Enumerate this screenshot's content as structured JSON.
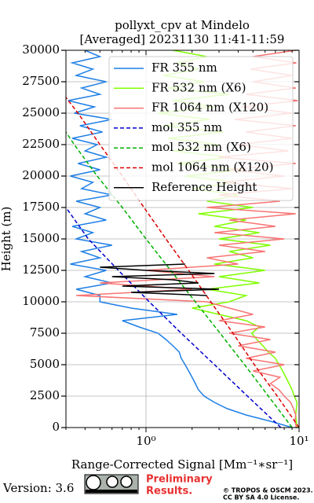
{
  "chart_data": {
    "type": "profile",
    "title": "pollyxt_cpv at Mindelo",
    "subtitle": "[Averaged] 20231130 11:41-11:59",
    "xlabel": "Range-Corrected Signal [Mm⁻¹∗sr⁻¹]",
    "ylabel": "Height (m)",
    "xscale": "log",
    "xlim": [
      0.3,
      10
    ],
    "xticks": [
      {
        "value": 1,
        "label": "10⁰"
      },
      {
        "value": 10,
        "label": "10¹"
      }
    ],
    "xminorticks": [
      0.3,
      0.4,
      0.5,
      0.6,
      0.7,
      0.8,
      0.9,
      2,
      3,
      4,
      5,
      6,
      7,
      8,
      9
    ],
    "ylim": [
      0,
      30000
    ],
    "yticks": [
      0,
      2500,
      5000,
      7500,
      10000,
      12500,
      15000,
      17500,
      20000,
      22500,
      25000,
      27500,
      30000
    ],
    "grid": true,
    "legend_loc": "upper right",
    "y": [
      0,
      500,
      1000,
      1500,
      2000,
      2500,
      3000,
      3500,
      4000,
      4500,
      5000,
      5500,
      6000,
      6500,
      7000,
      7500,
      8000,
      8500,
      9000,
      9500,
      10000,
      10500,
      11000,
      11500,
      12000,
      12500,
      13000,
      13500,
      14000,
      14500,
      15000,
      15500,
      16000,
      16500,
      17000,
      17500,
      18000,
      18500,
      19000,
      19500,
      20000,
      20500,
      21000,
      21500,
      22000,
      22500,
      23000,
      23500,
      24000,
      24500,
      25000,
      25500,
      26000,
      26500,
      27000,
      27500,
      28000,
      28500,
      29000,
      29500,
      30000
    ],
    "series": [
      {
        "name": "FR 355 nm",
        "color": "#1e7fe6",
        "linestyle": "solid",
        "values": [
          9.0,
          6.5,
          4.5,
          3.4,
          2.8,
          2.4,
          2.2,
          2.1,
          2.0,
          1.9,
          1.8,
          1.7,
          1.65,
          1.5,
          1.35,
          1.2,
          0.9,
          0.7,
          1.6,
          0.8,
          0.5,
          0.5,
          0.35,
          0.6,
          0.4,
          0.55,
          0.32,
          0.5,
          0.38,
          0.6,
          0.35,
          0.45,
          0.33,
          0.55,
          0.4,
          0.5,
          0.35,
          0.6,
          0.38,
          0.45,
          0.32,
          0.5,
          0.36,
          0.55,
          0.4,
          0.48,
          0.33,
          0.52,
          0.37,
          0.6,
          0.34,
          0.46,
          0.31,
          0.5,
          0.38,
          0.55,
          0.35,
          0.45,
          0.33,
          0.5,
          0.4
        ]
      },
      {
        "name": "FR 532 nm (X6)",
        "color": "#80ff00",
        "linestyle": "solid",
        "values": [
          9.8,
          9.6,
          9.5,
          9.6,
          9.7,
          9.3,
          9,
          8.6,
          8.2,
          7.8,
          7.4,
          7,
          6.3,
          5.8,
          5.3,
          4.9,
          5.5,
          4.5,
          3.0,
          2.0,
          3.5,
          4.5,
          2.5,
          5.5,
          3.0,
          6,
          2.8,
          5,
          3.5,
          6.5,
          3,
          5.5,
          2.8,
          4.5,
          2.2,
          5,
          2.5,
          4,
          2,
          3.8,
          1.8,
          4.2,
          1.6,
          3.5,
          1.5,
          3,
          1.4,
          3.2,
          1.3,
          2.6,
          1.2,
          2.8,
          1.5,
          3.5,
          1.4,
          2.4,
          1.3,
          2.2,
          1.6,
          2.5,
          1.5
        ]
      },
      {
        "name": "FR 1064 nm (X120)",
        "color": "#f87474",
        "linestyle": "solid",
        "values": [
          9.6,
          9.4,
          9.5,
          9.2,
          8.8,
          8.0,
          7.4,
          6.5,
          7.5,
          5.0,
          8.0,
          4.5,
          7.0,
          4.0,
          6.5,
          3.5,
          6.0,
          3.0,
          5.0,
          3.5,
          2.5,
          0.35,
          2.0,
          0.5,
          2.8,
          1.0,
          4.0,
          2.5,
          6.0,
          3.0,
          8.0,
          2.8,
          7.0,
          3.5,
          9.5,
          2.5,
          7.5,
          3.0,
          9.0,
          3.2,
          8.0,
          3.5,
          9.5,
          3.0,
          8.5,
          4.0,
          9.0,
          4.5,
          9.5,
          3.8,
          9.0,
          4.2,
          9.8,
          4.5,
          9.5,
          5.0,
          9.0,
          4.8,
          9.6,
          5.0,
          9.5
        ]
      },
      {
        "name": "mol 355 nm",
        "color": "#0000cc",
        "linestyle": "dashed",
        "y": [
          0,
          2500,
          5000,
          7500,
          10000,
          12500,
          15000,
          17500
        ],
        "values": [
          7.6,
          4.6,
          2.8,
          1.7,
          1.05,
          0.66,
          0.42,
          0.3
        ]
      },
      {
        "name": "mol 532 nm (X6)",
        "color": "#00b000",
        "linestyle": "dashed",
        "y": [
          0,
          2500,
          5000,
          7500,
          10000,
          12500,
          15000,
          17500,
          20000,
          22500,
          23500
        ],
        "values": [
          9.0,
          6.3,
          4.4,
          3.05,
          2.1,
          1.45,
          1.0,
          0.7,
          0.48,
          0.34,
          0.3
        ]
      },
      {
        "name": "mol 1064 nm (X120)",
        "color": "#dd0000",
        "linestyle": "dashed",
        "y": [
          0,
          2500,
          5000,
          7500,
          10000,
          12500,
          15000,
          17500,
          20000,
          22500,
          25000,
          26250
        ],
        "values": [
          10,
          7.2,
          5.1,
          3.7,
          2.65,
          1.9,
          1.35,
          0.97,
          0.7,
          0.5,
          0.36,
          0.3
        ]
      },
      {
        "name": "Reference Height",
        "color": "#000000",
        "linestyle": "solid",
        "y": [
          10500,
          10750,
          11000,
          11250,
          11500,
          11750,
          12000,
          12250,
          12500,
          12750,
          13000
        ],
        "values": [
          2.5,
          0.8,
          3.0,
          0.7,
          2.2,
          1.5,
          0.6,
          2.8,
          1.0,
          0.5,
          1.8
        ]
      }
    ]
  },
  "footer": {
    "version": "Version: 3.6",
    "notice": [
      "Preliminary",
      "Results."
    ],
    "license": [
      "© TROPOS & OSCM 2023.",
      "CC BY SA 4.0 License."
    ]
  }
}
